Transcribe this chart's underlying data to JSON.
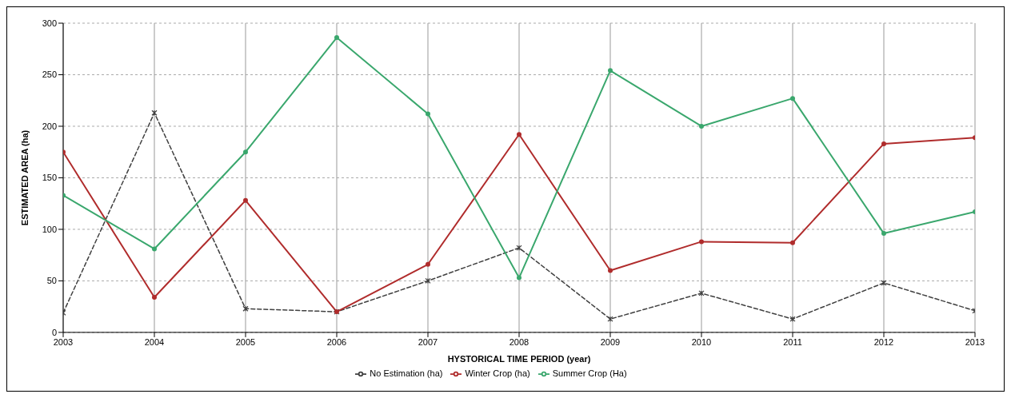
{
  "chart_data": {
    "type": "line",
    "xlabel": "HYSTORICAL TIME PERIOD (year)",
    "ylabel": "ESTIMATED AREA (ha)",
    "x": [
      2003,
      2004,
      2005,
      2006,
      2007,
      2008,
      2009,
      2010,
      2011,
      2012,
      2013
    ],
    "xlim": [
      2003,
      2013
    ],
    "xticks": [
      2003,
      2004,
      2005,
      2006,
      2007,
      2008,
      2009,
      2010,
      2011,
      2012,
      2013
    ],
    "ylim": [
      0,
      300
    ],
    "yticks": [
      0,
      50,
      100,
      150,
      200,
      250,
      300
    ],
    "grid": true,
    "legend": "bottom",
    "series": [
      {
        "name": "No Estimation (ha)",
        "color": "#404040",
        "marker": "cross",
        "line_style": "dashed",
        "values": [
          19,
          213,
          23,
          20,
          50,
          82,
          13,
          38,
          13,
          48,
          21
        ]
      },
      {
        "name": "Winter Crop (ha)",
        "color": "#b02c2c",
        "marker": "circle",
        "line_style": "solid",
        "values": [
          175,
          34,
          128,
          20,
          66,
          192,
          60,
          88,
          87,
          183,
          189
        ]
      },
      {
        "name": "Summer Crop (Ha)",
        "color": "#3aa76d",
        "marker": "circle",
        "line_style": "solid",
        "values": [
          133,
          81,
          175,
          286,
          212,
          53,
          254,
          200,
          227,
          96,
          117
        ]
      }
    ]
  }
}
